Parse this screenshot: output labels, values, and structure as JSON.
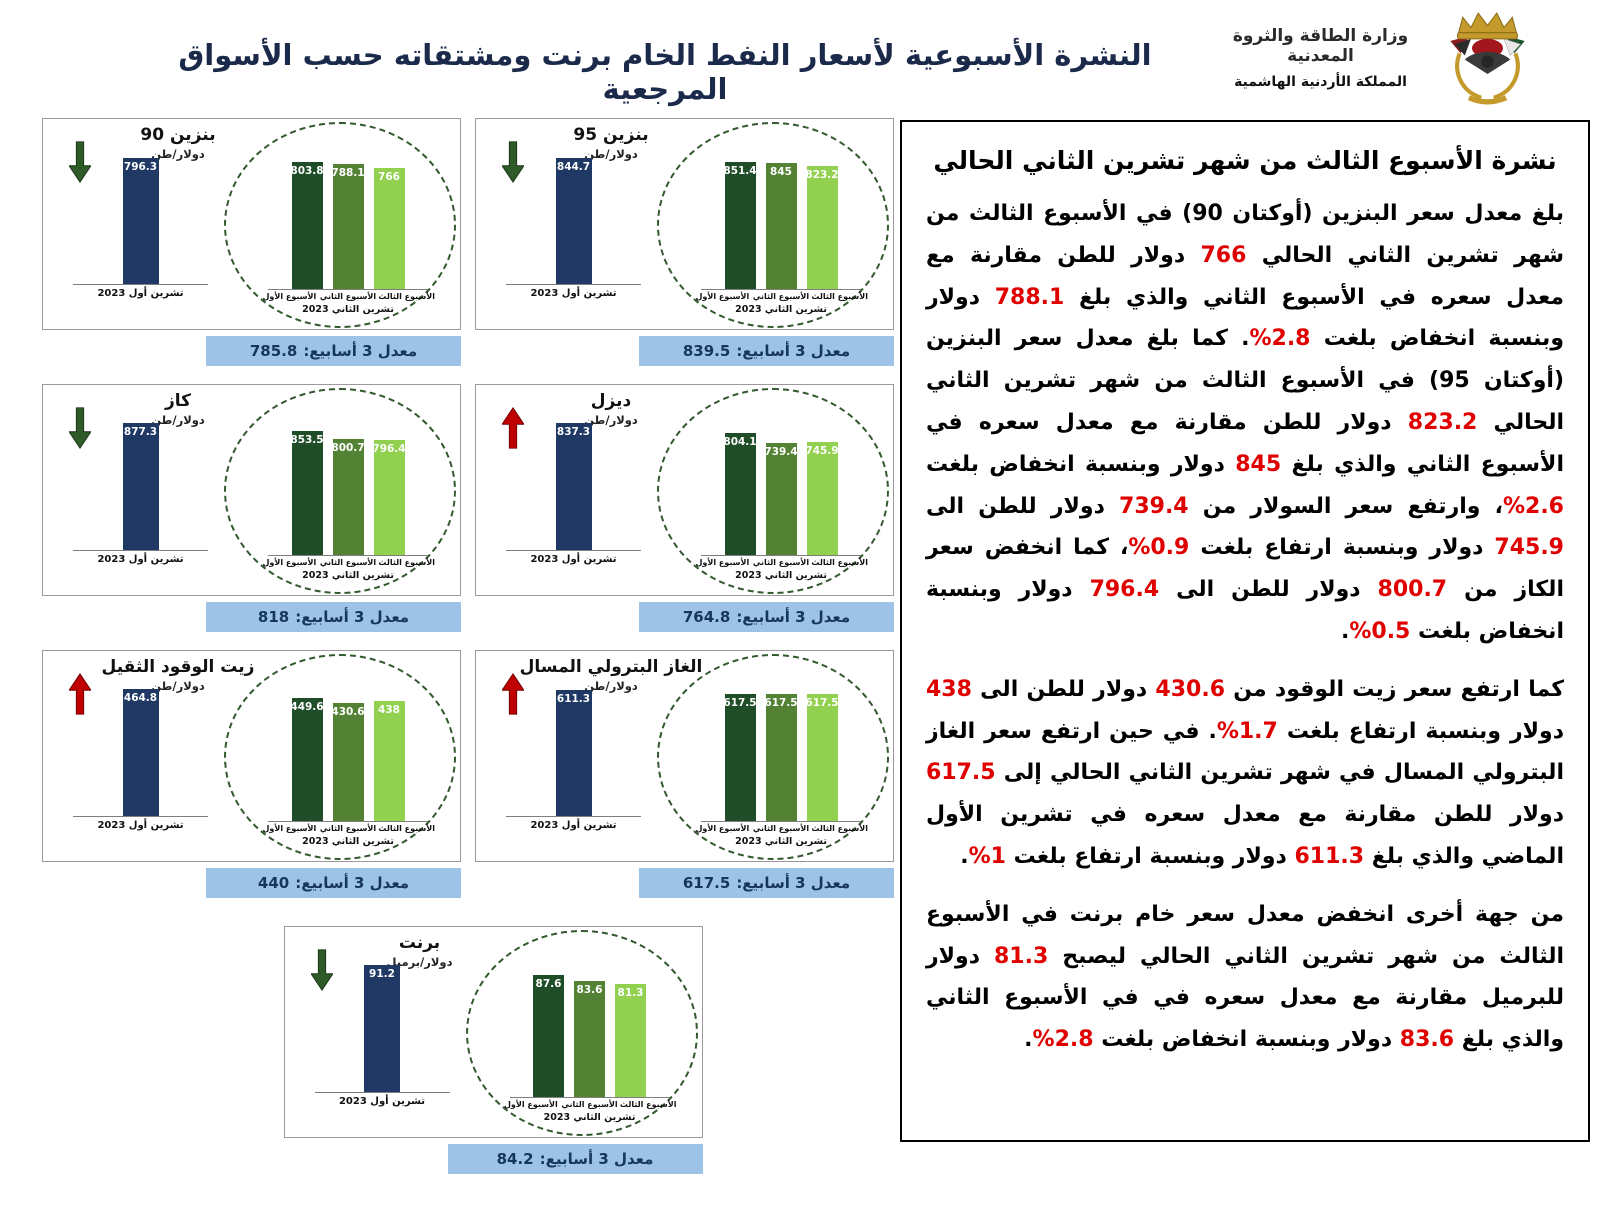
{
  "page": {
    "title": "النشرة الأسبوعية لأسعار النفط الخام برنت ومشتقاته حسب الأسواق المرجعية"
  },
  "logo": {
    "ministry": "وزارة الطاقة والثروة المعدنية",
    "kingdom": "المملكة الأردنية الهاشمية"
  },
  "labels": {
    "avg_prefix": "معدل 3 أسابيع:",
    "month_prev": "تشرين أول 2023",
    "month_curr": "تشرين الثاني 2023",
    "weeks": [
      "الأسبوع الأول",
      "الأسبوع الثاني",
      "الأسبوع الثالث"
    ]
  },
  "colors": {
    "prev_month_bar": "#1f3864",
    "week1_bar": "#1e4d28",
    "week2_bar": "#548235",
    "week3_bar": "#92d050",
    "avg_banner": "#9dc3e6",
    "up_arrow": "#c00000",
    "down_arrow": "#2e5a27",
    "highlight_number": "#e00000"
  },
  "panels": [
    {
      "id": "benzine90",
      "title": "بنزين 90",
      "unit": "دولار/طن",
      "trend": "down",
      "prev": 796.3,
      "weeks": [
        803.8,
        788.1,
        766
      ],
      "avg": "785.8"
    },
    {
      "id": "benzine95",
      "title": "بنزين 95",
      "unit": "دولار/طن",
      "trend": "down",
      "prev": 844.7,
      "weeks": [
        851.4,
        845,
        823.2
      ],
      "avg": "839.5"
    },
    {
      "id": "kerosene",
      "title": "كاز",
      "unit": "دولار/طن",
      "trend": "down",
      "prev": 877.3,
      "weeks": [
        853.5,
        800.7,
        796.4
      ],
      "avg": "818"
    },
    {
      "id": "diesel",
      "title": "ديزل",
      "unit": "دولار/طن",
      "trend": "up",
      "prev": 837.3,
      "weeks": [
        804.1,
        739.4,
        745.9
      ],
      "avg": "764.8"
    },
    {
      "id": "heavy-fuel-oil",
      "title": "زيت الوقود الثقيل",
      "unit": "دولار/طن",
      "trend": "up",
      "prev": 464.8,
      "weeks": [
        449.6,
        430.6,
        438
      ],
      "avg": "440"
    },
    {
      "id": "lpg",
      "title": "الغاز البترولي المسال",
      "unit": "دولار/طن",
      "trend": "up",
      "prev": 611.3,
      "weeks": [
        617.5,
        617.5,
        617.5
      ],
      "avg": "617.5"
    },
    {
      "id": "brent",
      "title": "برنت",
      "unit": "دولار/برميل",
      "trend": "down",
      "prev": 91.2,
      "weeks": [
        87.6,
        83.6,
        81.3
      ],
      "avg": "84.2"
    }
  ],
  "article": {
    "title": "نشرة الأسبوع الثالث من شهر تشرين الثاني الحالي",
    "paragraphs": [
      [
        {
          "t": "بلغ معدل سعر البنزين (أوكتان 90) في الأسبوع الثالث من شهر تشرين الثاني الحالي "
        },
        {
          "t": "766",
          "red": true
        },
        {
          "t": " دولار للطن مقارنة مع معدل سعره في الأسبوع الثاني والذي بلغ "
        },
        {
          "t": "788.1",
          "red": true
        },
        {
          "t": " دولار وبنسبة انخفاض بلغت "
        },
        {
          "t": "2.8%",
          "red": true
        },
        {
          "t": ". كما بلغ معدل سعر البنزين (أوكتان 95) في الأسبوع الثالث من شهر تشرين الثاني الحالي "
        },
        {
          "t": "823.2",
          "red": true
        },
        {
          "t": " دولار للطن مقارنة مع معدل سعره في الأسبوع الثاني والذي بلغ "
        },
        {
          "t": "845",
          "red": true
        },
        {
          "t": " دولار وبنسبة انخفاض بلغت "
        },
        {
          "t": "2.6%",
          "red": true
        },
        {
          "t": "، وارتفع سعر السولار من "
        },
        {
          "t": "739.4",
          "red": true
        },
        {
          "t": " دولار للطن الى "
        },
        {
          "t": "745.9",
          "red": true
        },
        {
          "t": " دولار وبنسبة ارتفاع بلغت "
        },
        {
          "t": "0.9%",
          "red": true
        },
        {
          "t": "، كما انخفض سعر الكاز من "
        },
        {
          "t": "800.7",
          "red": true
        },
        {
          "t": " دولار للطن الى "
        },
        {
          "t": "796.4",
          "red": true
        },
        {
          "t": " دولار وبنسبة انخفاض بلغت "
        },
        {
          "t": "0.5%",
          "red": true
        },
        {
          "t": "."
        }
      ],
      [
        {
          "t": "كما ارتفع سعر زيت الوقود من "
        },
        {
          "t": "430.6",
          "red": true
        },
        {
          "t": " دولار للطن الى "
        },
        {
          "t": "438",
          "red": true
        },
        {
          "t": " دولار وبنسبة ارتفاع بلغت "
        },
        {
          "t": "1.7%",
          "red": true
        },
        {
          "t": ". في حين ارتفع سعر الغاز البترولي المسال في شهر تشرين الثاني الحالي إلى "
        },
        {
          "t": "617.5",
          "red": true
        },
        {
          "t": " دولار للطن مقارنة مع معدل سعره في تشرين الأول الماضي والذي بلغ "
        },
        {
          "t": "611.3",
          "red": true
        },
        {
          "t": " دولار وبنسبة ارتفاع بلغت "
        },
        {
          "t": "1%",
          "red": true
        },
        {
          "t": "."
        }
      ],
      [
        {
          "t": "من جهة أخرى انخفض معدل سعر خام برنت في الأسبوع الثالث من شهر تشرين الثاني الحالي ليصبح "
        },
        {
          "t": "81.3",
          "red": true
        },
        {
          "t": " دولار للبرميل مقارنة مع معدل سعره في في الأسبوع الثاني والذي بلغ "
        },
        {
          "t": "83.6",
          "red": true
        },
        {
          "t": " دولار وبنسبة انخفاض بلغت "
        },
        {
          "t": "2.8%",
          "red": true
        },
        {
          "t": "."
        }
      ]
    ]
  },
  "chart_data": [
    {
      "type": "bar",
      "title": "بنزين 90",
      "ylabel": "دولار/طن",
      "categories": [
        "تشرين أول 2023",
        "الأسبوع الأول",
        "الأسبوع الثاني",
        "الأسبوع الثالث"
      ],
      "values": [
        796.3,
        803.8,
        788.1,
        766
      ],
      "three_week_avg": 785.8,
      "trend": "down"
    },
    {
      "type": "bar",
      "title": "بنزين 95",
      "ylabel": "دولار/طن",
      "categories": [
        "تشرين أول 2023",
        "الأسبوع الأول",
        "الأسبوع الثاني",
        "الأسبوع الثالث"
      ],
      "values": [
        844.7,
        851.4,
        845,
        823.2
      ],
      "three_week_avg": 839.5,
      "trend": "down"
    },
    {
      "type": "bar",
      "title": "كاز",
      "ylabel": "دولار/طن",
      "categories": [
        "تشرين أول 2023",
        "الأسبوع الأول",
        "الأسبوع الثاني",
        "الأسبوع الثالث"
      ],
      "values": [
        877.3,
        853.5,
        800.7,
        796.4
      ],
      "three_week_avg": 818,
      "trend": "down"
    },
    {
      "type": "bar",
      "title": "ديزل",
      "ylabel": "دولار/طن",
      "categories": [
        "تشرين أول 2023",
        "الأسبوع الأول",
        "الأسبوع الثاني",
        "الأسبوع الثالث"
      ],
      "values": [
        837.3,
        804.1,
        739.4,
        745.9
      ],
      "three_week_avg": 764.8,
      "trend": "up"
    },
    {
      "type": "bar",
      "title": "زيت الوقود الثقيل",
      "ylabel": "دولار/طن",
      "categories": [
        "تشرين أول 2023",
        "الأسبوع الأول",
        "الأسبوع الثاني",
        "الأسبوع الثالث"
      ],
      "values": [
        464.8,
        449.6,
        430.6,
        438
      ],
      "three_week_avg": 440,
      "trend": "up"
    },
    {
      "type": "bar",
      "title": "الغاز البترولي المسال",
      "ylabel": "دولار/طن",
      "categories": [
        "تشرين أول 2023",
        "الأسبوع الأول",
        "الأسبوع الثاني",
        "الأسبوع الثالث"
      ],
      "values": [
        611.3,
        617.5,
        617.5,
        617.5
      ],
      "three_week_avg": 617.5,
      "trend": "up"
    },
    {
      "type": "bar",
      "title": "برنت",
      "ylabel": "دولار/برميل",
      "categories": [
        "تشرين أول 2023",
        "الأسبوع الأول",
        "الأسبوع الثاني",
        "الأسبوع الثالث"
      ],
      "values": [
        91.2,
        87.6,
        83.6,
        81.3
      ],
      "three_week_avg": 84.2,
      "trend": "down"
    }
  ]
}
